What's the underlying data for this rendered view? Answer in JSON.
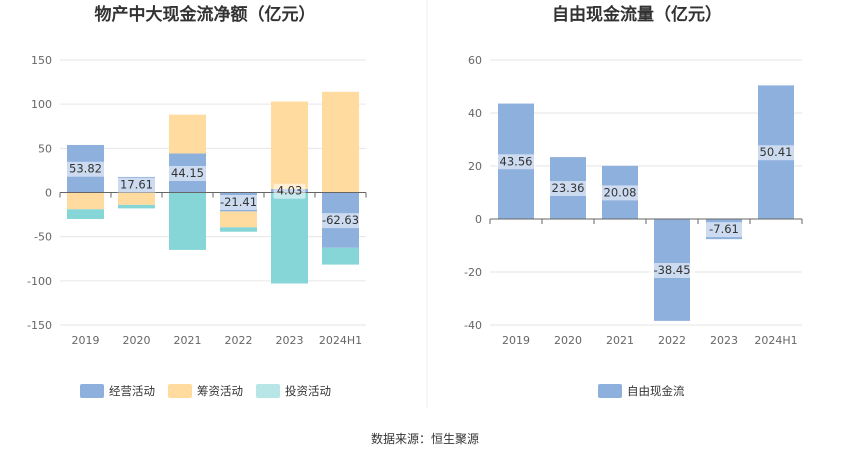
{
  "source_text": "数据来源：恒生聚源",
  "colors": {
    "operating": "#8eb0dd",
    "financing": "#ffdba0",
    "investing": "#86d6d8",
    "fcf": "#8eb0dd",
    "legend_investing": "#b8e5e6"
  },
  "chart_data": [
    {
      "type": "bar",
      "stacked": true,
      "title": "物产中大现金流净额（亿元）",
      "categories": [
        "2019",
        "2020",
        "2021",
        "2022",
        "2023",
        "2024H1"
      ],
      "ylim": [
        -150,
        150
      ],
      "yticks": [
        150,
        100,
        50,
        0,
        -50,
        -100,
        -150
      ],
      "grid": true,
      "legend_position": "bottom",
      "series": [
        {
          "name": "经营活动",
          "color_key": "operating",
          "values": [
            53.82,
            17.61,
            44.15,
            -21.41,
            4.03,
            -62.63
          ],
          "labels": [
            "53.82",
            "17.61",
            "44.15",
            "-21.41",
            "4.03",
            "-62.63"
          ]
        },
        {
          "name": "筹资活动",
          "color_key": "financing",
          "values": [
            -19,
            -14,
            44,
            -18,
            99,
            114
          ]
        },
        {
          "name": "投资活动",
          "color_key": "investing",
          "values": [
            -11,
            -4,
            -65,
            -5,
            -103,
            -19
          ]
        }
      ]
    },
    {
      "type": "bar",
      "title": "自由现金流量（亿元）",
      "categories": [
        "2019",
        "2020",
        "2021",
        "2022",
        "2023",
        "2024H1"
      ],
      "ylim": [
        -40,
        60
      ],
      "yticks": [
        60,
        40,
        20,
        0,
        -20,
        -40
      ],
      "grid": true,
      "legend_position": "bottom",
      "series": [
        {
          "name": "自由现金流",
          "color_key": "fcf",
          "values": [
            43.56,
            23.36,
            20.08,
            -38.45,
            -7.61,
            50.41
          ],
          "labels": [
            "43.56",
            "23.36",
            "20.08",
            "-38.45",
            "-7.61",
            "50.41"
          ]
        }
      ]
    }
  ]
}
